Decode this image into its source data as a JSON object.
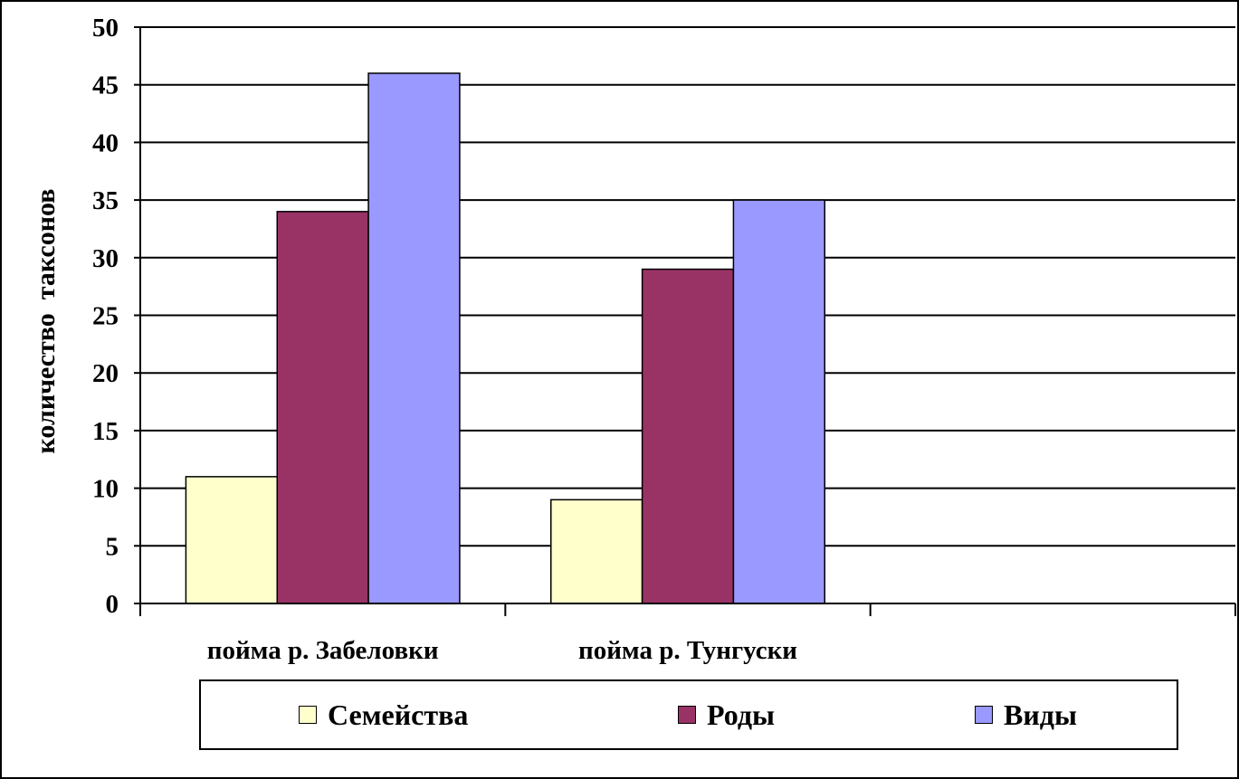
{
  "chart_data": {
    "type": "bar",
    "categories": [
      "пойма р. Забеловки",
      "пойма р. Тунгуски",
      ""
    ],
    "series": [
      {
        "name": "Семейства",
        "values": [
          11,
          9,
          null
        ],
        "color": "#FFFFCC"
      },
      {
        "name": "Роды",
        "values": [
          34,
          29,
          null
        ],
        "color": "#993366"
      },
      {
        "name": "Виды",
        "values": [
          46,
          35,
          null
        ],
        "color": "#9999FF"
      }
    ],
    "title": "",
    "xlabel": "",
    "ylabel": "количество  таксонов",
    "ylim": [
      0,
      50
    ],
    "yticks": [
      "0",
      "5",
      "10",
      "15",
      "20",
      "25",
      "30",
      "35",
      "40",
      "45",
      "50"
    ],
    "grid": true,
    "legend_position": "bottom"
  }
}
